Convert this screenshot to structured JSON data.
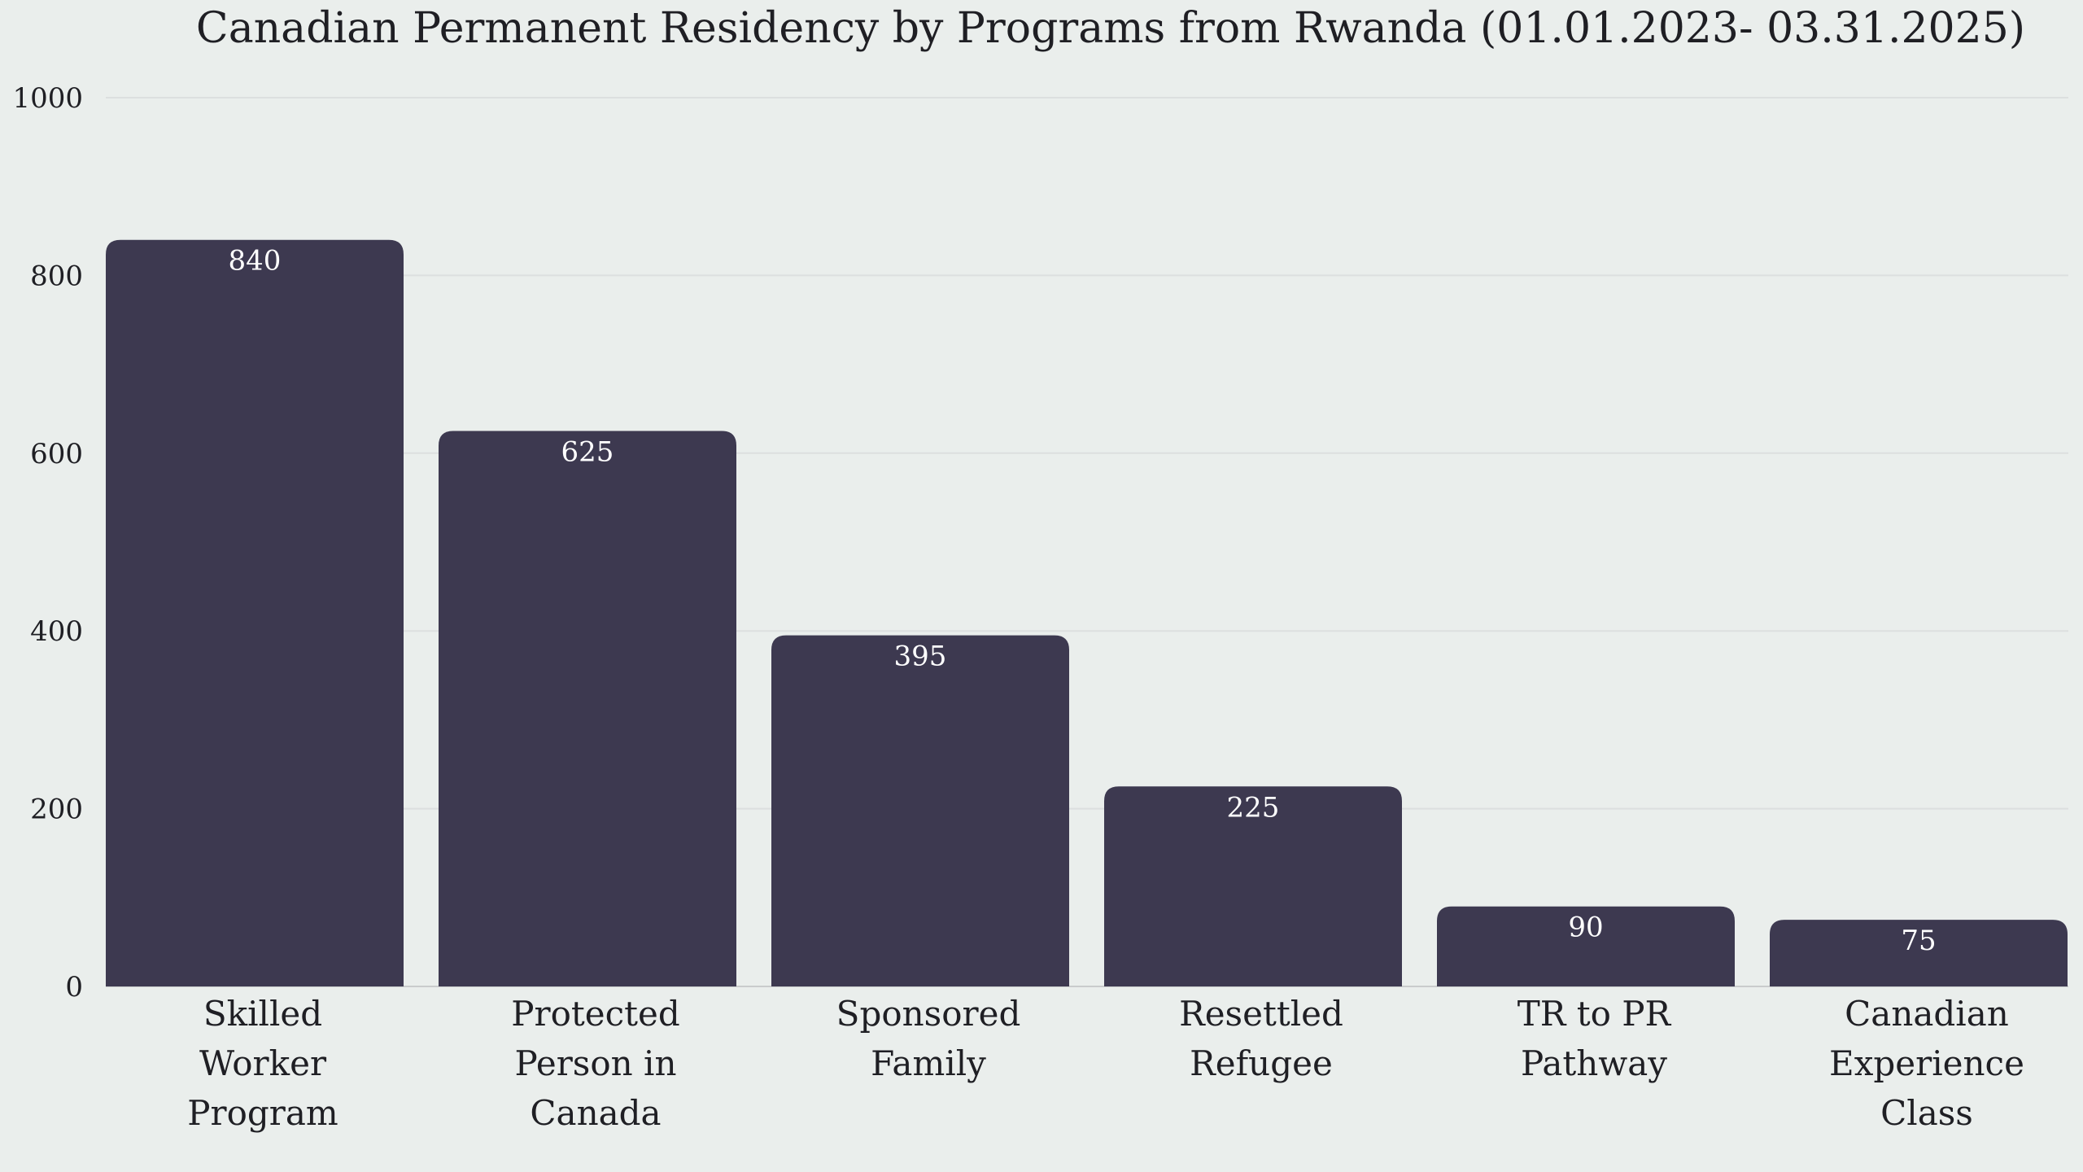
{
  "chart_data": {
    "type": "bar",
    "title": "Canadian Permanent Residency by Programs from Rwanda (01.01.2023- 03.31.2025)",
    "xlabel": "",
    "ylabel": "",
    "categories": [
      [
        "Skilled",
        "Worker",
        "Program"
      ],
      [
        "Protected",
        "Person in",
        "Canada"
      ],
      [
        "Sponsored",
        "Family"
      ],
      [
        "Resettled",
        "Refugee"
      ],
      [
        "TR to PR",
        "Pathway"
      ],
      [
        "Canadian",
        "Experience",
        "Class"
      ]
    ],
    "values": [
      840,
      625,
      395,
      225,
      90,
      75
    ],
    "data_labels": [
      "840",
      "625",
      "395",
      "225",
      "90",
      "75"
    ],
    "ylim": [
      0,
      1000
    ],
    "yticks": [
      0,
      200,
      400,
      600,
      800,
      1000
    ],
    "grid": true,
    "legend": "none",
    "colors": {
      "bar": "#3d3950",
      "background": "#eaeeec",
      "grid": "#dcdfdf",
      "text": "#1f1f24",
      "label": "#ffffff"
    }
  }
}
